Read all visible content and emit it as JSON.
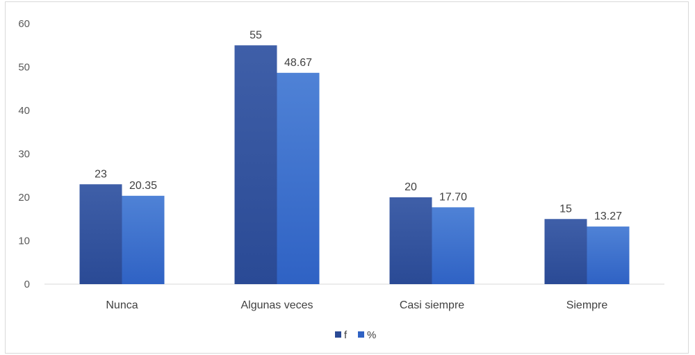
{
  "chart_data": {
    "type": "bar",
    "categories": [
      "Nunca",
      "Algunas veces",
      "Casi siempre",
      "Siempre"
    ],
    "series": [
      {
        "name": "f",
        "values": [
          23,
          55,
          20,
          15
        ],
        "labels": [
          "23",
          "55",
          "20",
          "15"
        ],
        "color": "#3f5fa8",
        "color_dark": "#2a4a95"
      },
      {
        "name": "%",
        "values": [
          20.35,
          48.67,
          17.7,
          13.27
        ],
        "labels": [
          "20.35",
          "48.67",
          "17.70",
          "13.27"
        ],
        "color": "#4f82d6",
        "color_dark": "#2f62c4"
      }
    ],
    "yticks": [
      "0",
      "10",
      "20",
      "30",
      "40",
      "50",
      "60"
    ],
    "ylim": [
      0,
      60
    ],
    "grid": false,
    "legend_position": "bottom"
  }
}
